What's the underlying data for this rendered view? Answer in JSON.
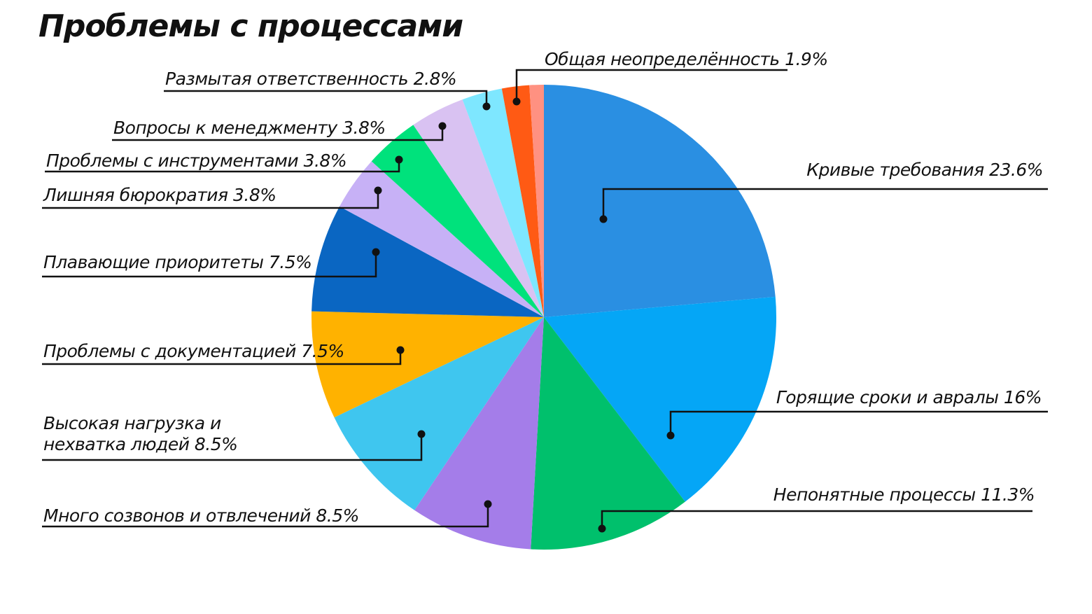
{
  "chart_data": {
    "type": "pie",
    "title": "Проблемы с процессами",
    "categories": [
      "Кривые требования",
      "Горящие сроки и авралы",
      "Непонятные процессы",
      "Много созвонов и отвлечений",
      "Высокая нагрузка и нехватка людей",
      "Проблемы с документацией",
      "Плавающие приоритеты",
      "Лишняя бюрократия",
      "Проблемы с инструментами",
      "Вопросы к менеджменту",
      "Размытая ответственность",
      "Общая неопределённость",
      null
    ],
    "values": [
      23.6,
      16,
      11.3,
      8.5,
      8.5,
      7.5,
      7.5,
      3.8,
      3.8,
      3.8,
      2.8,
      1.9,
      1.0
    ],
    "value_labels": [
      "23.6%",
      "16%",
      "11.3%",
      "8.5%",
      "8.5%",
      "7.5%",
      "7.5%",
      "3.8%",
      "3.8%",
      "3.8%",
      "2.8%",
      "1.9%",
      null
    ],
    "colors": [
      "#2a8fe2",
      "#05a6f6",
      "#00c06c",
      "#a47de9",
      "#3fc6ef",
      "#ffb200",
      "#0a66c2",
      "#c7b1f6",
      "#00e27c",
      "#d9c2f2",
      "#7ee7ff",
      "#ff5a14",
      "#ff9181"
    ]
  }
}
